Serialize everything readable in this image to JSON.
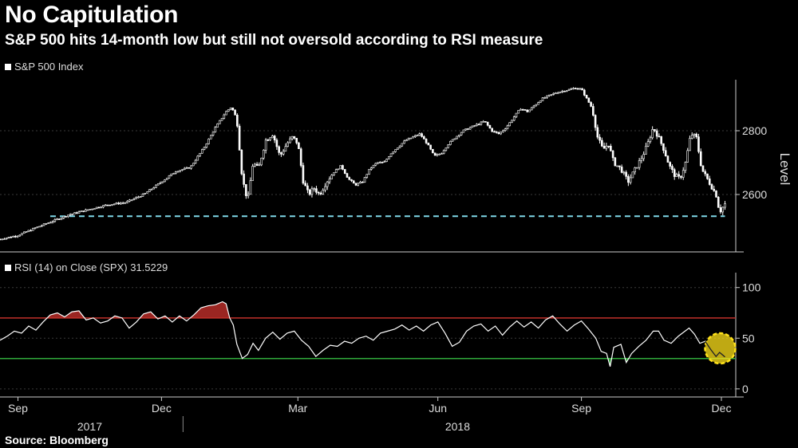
{
  "title": "No Capitulation",
  "subtitle": "S&P 500 hits 14-month low but still not oversold according to RSI measure",
  "source": "Source: Bloomberg",
  "chart_data": [
    {
      "type": "line",
      "style": "candlestick",
      "series_name": "S&P 500 Index",
      "ylabel": "Level",
      "ylim": [
        2420,
        2960
      ],
      "yticks": [
        2600,
        2800
      ],
      "support_level": 2532,
      "support_color": "#7fd7e8",
      "points": [
        [
          0,
          2460
        ],
        [
          0.5,
          2472
        ],
        [
          1,
          2496
        ],
        [
          1.5,
          2518
        ],
        [
          1.9,
          2536
        ],
        [
          2.5,
          2554
        ],
        [
          3,
          2568
        ],
        [
          3.5,
          2575
        ],
        [
          4,
          2600
        ],
        [
          4.5,
          2640
        ],
        [
          4.9,
          2673
        ],
        [
          5.3,
          2685
        ],
        [
          5.7,
          2750
        ],
        [
          6,
          2810
        ],
        [
          6.3,
          2860
        ],
        [
          6.45,
          2875
        ],
        [
          6.6,
          2835
        ],
        [
          6.75,
          2650
        ],
        [
          6.9,
          2580
        ],
        [
          7.05,
          2700
        ],
        [
          7.2,
          2680
        ],
        [
          7.4,
          2770
        ],
        [
          7.6,
          2790
        ],
        [
          7.8,
          2720
        ],
        [
          8,
          2760
        ],
        [
          8.15,
          2780
        ],
        [
          8.3,
          2760
        ],
        [
          8.45,
          2640
        ],
        [
          8.6,
          2600
        ],
        [
          8.75,
          2620
        ],
        [
          8.9,
          2600
        ],
        [
          9.1,
          2640
        ],
        [
          9.3,
          2670
        ],
        [
          9.5,
          2690
        ],
        [
          9.7,
          2650
        ],
        [
          9.9,
          2630
        ],
        [
          10.1,
          2640
        ],
        [
          10.3,
          2680
        ],
        [
          10.5,
          2700
        ],
        [
          10.7,
          2700
        ],
        [
          10.9,
          2730
        ],
        [
          11.1,
          2750
        ],
        [
          11.3,
          2770
        ],
        [
          11.5,
          2780
        ],
        [
          11.7,
          2790
        ],
        [
          11.9,
          2760
        ],
        [
          12.1,
          2720
        ],
        [
          12.3,
          2730
        ],
        [
          12.5,
          2760
        ],
        [
          12.7,
          2780
        ],
        [
          12.9,
          2800
        ],
        [
          13.1,
          2810
        ],
        [
          13.3,
          2820
        ],
        [
          13.5,
          2830
        ],
        [
          13.7,
          2800
        ],
        [
          13.9,
          2790
        ],
        [
          14.1,
          2810
        ],
        [
          14.3,
          2840
        ],
        [
          14.5,
          2870
        ],
        [
          14.7,
          2860
        ],
        [
          14.9,
          2880
        ],
        [
          15.1,
          2900
        ],
        [
          15.3,
          2910
        ],
        [
          15.5,
          2920
        ],
        [
          15.7,
          2925
        ],
        [
          15.9,
          2930
        ],
        [
          16.05,
          2935
        ],
        [
          16.2,
          2930
        ],
        [
          16.35,
          2900
        ],
        [
          16.5,
          2870
        ],
        [
          16.65,
          2780
        ],
        [
          16.8,
          2740
        ],
        [
          16.95,
          2760
        ],
        [
          17.1,
          2700
        ],
        [
          17.3,
          2680
        ],
        [
          17.5,
          2640
        ],
        [
          17.7,
          2680
        ],
        [
          17.9,
          2720
        ],
        [
          18.05,
          2760
        ],
        [
          18.2,
          2810
        ],
        [
          18.35,
          2780
        ],
        [
          18.5,
          2740
        ],
        [
          18.65,
          2690
        ],
        [
          18.8,
          2660
        ],
        [
          18.95,
          2650
        ],
        [
          19.1,
          2700
        ],
        [
          19.25,
          2790
        ],
        [
          19.4,
          2780
        ],
        [
          19.55,
          2680
        ],
        [
          19.7,
          2650
        ],
        [
          19.85,
          2620
        ],
        [
          19.95,
          2600
        ],
        [
          20.05,
          2545
        ],
        [
          20.2,
          2570
        ]
      ],
      "support_start_x": 1.4
    },
    {
      "type": "line",
      "series_name": "RSI (14)  on Close (SPX) 31.5229",
      "ylim": [
        -8,
        110
      ],
      "yticks": [
        0,
        50,
        100
      ],
      "overbought": 70,
      "oversold": 30,
      "overbought_color": "#c0302a",
      "oversold_color": "#2fa83a",
      "last_value": 31.5229,
      "highlight_color": "#ffe21a",
      "points": [
        [
          0,
          48
        ],
        [
          0.2,
          52
        ],
        [
          0.4,
          57
        ],
        [
          0.6,
          55
        ],
        [
          0.8,
          62
        ],
        [
          1,
          58
        ],
        [
          1.2,
          66
        ],
        [
          1.4,
          73
        ],
        [
          1.6,
          75
        ],
        [
          1.8,
          71
        ],
        [
          2,
          76
        ],
        [
          2.2,
          77
        ],
        [
          2.4,
          68
        ],
        [
          2.6,
          70
        ],
        [
          2.8,
          65
        ],
        [
          3,
          67
        ],
        [
          3.2,
          72
        ],
        [
          3.4,
          70
        ],
        [
          3.6,
          60
        ],
        [
          3.8,
          66
        ],
        [
          4,
          74
        ],
        [
          4.2,
          76
        ],
        [
          4.4,
          69
        ],
        [
          4.6,
          72
        ],
        [
          4.8,
          66
        ],
        [
          5,
          72
        ],
        [
          5.2,
          67
        ],
        [
          5.4,
          73
        ],
        [
          5.6,
          80
        ],
        [
          5.8,
          82
        ],
        [
          6,
          83
        ],
        [
          6.2,
          86
        ],
        [
          6.3,
          84
        ],
        [
          6.4,
          70
        ],
        [
          6.5,
          63
        ],
        [
          6.6,
          44
        ],
        [
          6.75,
          30
        ],
        [
          6.9,
          34
        ],
        [
          7.05,
          45
        ],
        [
          7.2,
          38
        ],
        [
          7.4,
          50
        ],
        [
          7.6,
          56
        ],
        [
          7.8,
          49
        ],
        [
          8,
          55
        ],
        [
          8.2,
          57
        ],
        [
          8.4,
          48
        ],
        [
          8.6,
          42
        ],
        [
          8.8,
          32
        ],
        [
          9,
          38
        ],
        [
          9.2,
          43
        ],
        [
          9.4,
          42
        ],
        [
          9.6,
          47
        ],
        [
          9.8,
          45
        ],
        [
          10,
          50
        ],
        [
          10.2,
          52
        ],
        [
          10.4,
          48
        ],
        [
          10.6,
          55
        ],
        [
          10.8,
          57
        ],
        [
          11,
          59
        ],
        [
          11.2,
          63
        ],
        [
          11.4,
          58
        ],
        [
          11.6,
          62
        ],
        [
          11.8,
          57
        ],
        [
          12,
          63
        ],
        [
          12.2,
          66
        ],
        [
          12.4,
          55
        ],
        [
          12.6,
          42
        ],
        [
          12.8,
          46
        ],
        [
          13,
          57
        ],
        [
          13.2,
          62
        ],
        [
          13.4,
          64
        ],
        [
          13.6,
          57
        ],
        [
          13.8,
          62
        ],
        [
          14,
          53
        ],
        [
          14.2,
          61
        ],
        [
          14.4,
          67
        ],
        [
          14.6,
          61
        ],
        [
          14.8,
          66
        ],
        [
          15,
          60
        ],
        [
          15.2,
          68
        ],
        [
          15.4,
          72
        ],
        [
          15.6,
          64
        ],
        [
          15.8,
          57
        ],
        [
          16,
          63
        ],
        [
          16.2,
          67
        ],
        [
          16.4,
          59
        ],
        [
          16.6,
          50
        ],
        [
          16.75,
          37
        ],
        [
          16.9,
          35
        ],
        [
          17,
          22
        ],
        [
          17.1,
          41
        ],
        [
          17.3,
          44
        ],
        [
          17.45,
          26
        ],
        [
          17.6,
          35
        ],
        [
          17.8,
          42
        ],
        [
          18,
          48
        ],
        [
          18.2,
          57
        ],
        [
          18.35,
          57
        ],
        [
          18.5,
          48
        ],
        [
          18.7,
          45
        ],
        [
          18.9,
          52
        ],
        [
          19.05,
          56
        ],
        [
          19.2,
          60
        ],
        [
          19.35,
          54
        ],
        [
          19.5,
          45
        ],
        [
          19.65,
          47
        ],
        [
          19.8,
          39
        ],
        [
          19.95,
          32
        ],
        [
          20.05,
          36
        ],
        [
          20.2,
          31.5
        ]
      ]
    }
  ],
  "x_axis": {
    "xlim": [
      0,
      20.5
    ],
    "ticks": [
      {
        "label": "Sep",
        "x": 0.5
      },
      {
        "label": "Dec",
        "x": 4.5
      },
      {
        "label": "Mar",
        "x": 8.3
      },
      {
        "label": "Jun",
        "x": 12.2
      },
      {
        "label": "Sep",
        "x": 16.2
      },
      {
        "label": "Dec",
        "x": 20.1
      }
    ],
    "years": [
      {
        "label": "2017",
        "x": 2.5
      },
      {
        "label": "2018",
        "x": 12.75
      }
    ],
    "year_divider_x": 5.1
  }
}
